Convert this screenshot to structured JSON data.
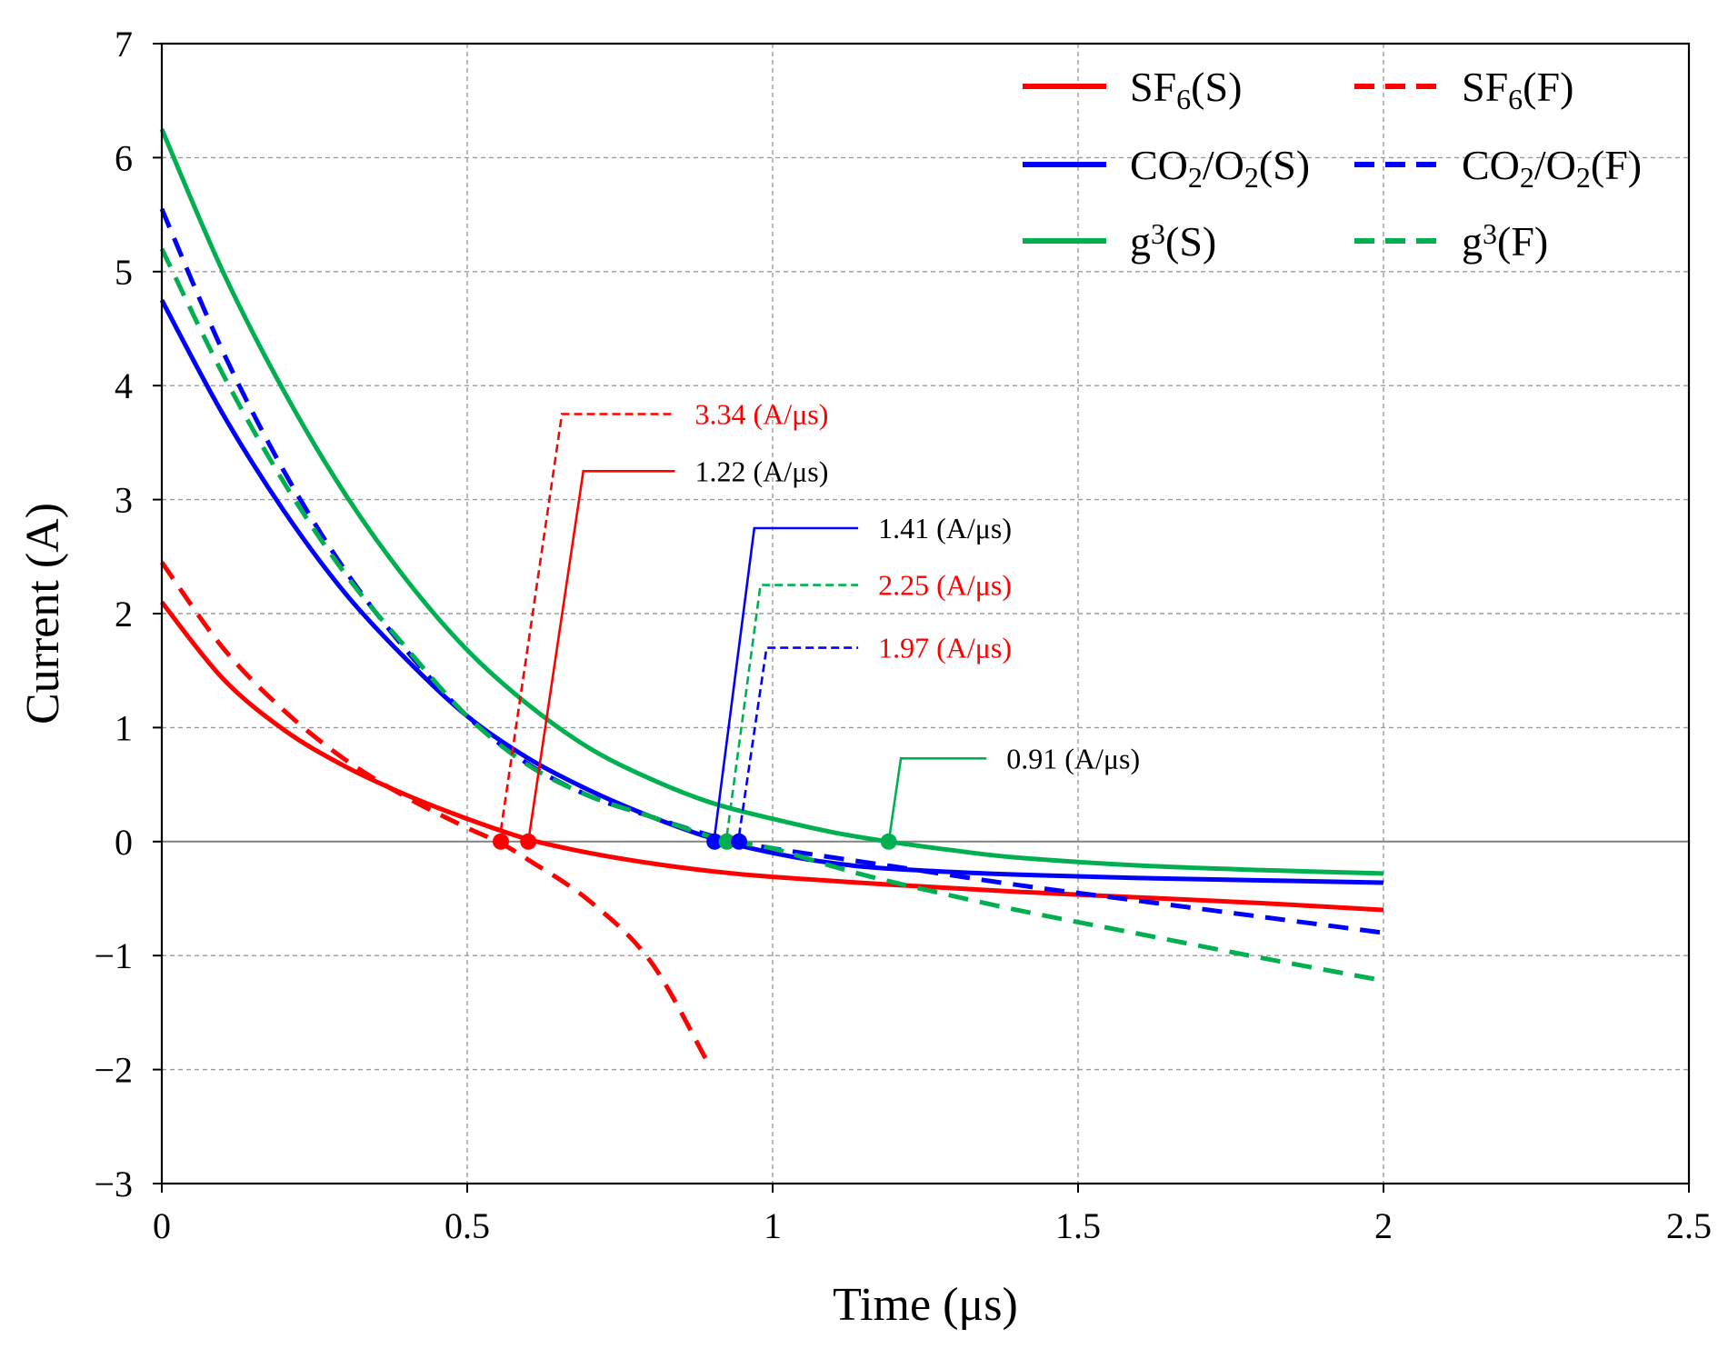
{
  "chart_data": {
    "type": "line",
    "title": "",
    "xlabel": "Time (μs)",
    "ylabel": "Current (A)",
    "xlim": [
      0,
      2.5
    ],
    "ylim": [
      -3,
      7
    ],
    "xticks": [
      0,
      0.5,
      1,
      1.5,
      2,
      2.5
    ],
    "xtick_labels": [
      "0",
      "0.5",
      "1",
      "1.5",
      "2",
      "2.5"
    ],
    "yticks": [
      -3,
      -2,
      -1,
      0,
      1,
      2,
      3,
      4,
      5,
      6,
      7
    ],
    "ytick_labels": [
      "−3",
      "−2",
      "−1",
      "0",
      "1",
      "2",
      "3",
      "4",
      "5",
      "6",
      "7"
    ],
    "grid": true,
    "legend_position": "top-right",
    "series": [
      {
        "name": "SF6(S)",
        "legend_main": "SF",
        "legend_sub": "6",
        "legend_rest": "(S)",
        "color": "#ff0000",
        "dash": "solid",
        "x": [
          0,
          0.1,
          0.2,
          0.3,
          0.4,
          0.5,
          0.6,
          0.7,
          0.8,
          0.9,
          1.0,
          1.2,
          1.4,
          1.6,
          1.8,
          2.0
        ],
        "y": [
          2.1,
          1.43,
          0.98,
          0.66,
          0.41,
          0.2,
          0.02,
          -0.1,
          -0.19,
          -0.26,
          -0.31,
          -0.38,
          -0.44,
          -0.49,
          -0.54,
          -0.6
        ]
      },
      {
        "name": "SF6(F)",
        "legend_main": "SF",
        "legend_sub": "6",
        "legend_rest": "(F)",
        "color": "#ff0000",
        "dash": "dashed",
        "x": [
          0,
          0.1,
          0.2,
          0.3,
          0.4,
          0.5,
          0.55,
          0.6,
          0.7,
          0.8,
          0.89
        ],
        "y": [
          2.45,
          1.7,
          1.15,
          0.72,
          0.39,
          0.12,
          0.0,
          -0.16,
          -0.52,
          -1.05,
          -1.9
        ]
      },
      {
        "name": "CO2/O2(S)",
        "legend_main": "CO",
        "legend_sub": "2",
        "legend_rest": "/O",
        "legend_sub2": "2",
        "legend_rest2": "(S)",
        "color": "#0000ff",
        "dash": "solid",
        "x": [
          0,
          0.1,
          0.2,
          0.3,
          0.4,
          0.5,
          0.6,
          0.7,
          0.8,
          0.9,
          1.0,
          1.1,
          1.2,
          1.4,
          1.6,
          1.8,
          2.0
        ],
        "y": [
          4.75,
          3.75,
          2.9,
          2.18,
          1.6,
          1.1,
          0.73,
          0.45,
          0.22,
          0.03,
          -0.1,
          -0.19,
          -0.24,
          -0.29,
          -0.32,
          -0.34,
          -0.36
        ]
      },
      {
        "name": "CO2/O2(F)",
        "legend_main": "CO",
        "legend_sub": "2",
        "legend_rest": "/O",
        "legend_sub2": "2",
        "legend_rest2": "(F)",
        "color": "#0000ff",
        "dash": "dashed",
        "x": [
          0,
          0.1,
          0.2,
          0.3,
          0.4,
          0.5,
          0.6,
          0.7,
          0.8,
          0.9,
          0.95,
          1.0,
          1.2,
          1.4,
          1.6,
          1.8,
          2.0
        ],
        "y": [
          5.55,
          4.3,
          3.25,
          2.38,
          1.68,
          1.1,
          0.68,
          0.4,
          0.22,
          0.05,
          -0.01,
          -0.06,
          -0.22,
          -0.38,
          -0.52,
          -0.66,
          -0.8
        ]
      },
      {
        "name": "g3(S)",
        "legend_main": "g",
        "legend_sup": "3",
        "legend_rest": "(S)",
        "color": "#00b050",
        "dash": "solid",
        "x": [
          0,
          0.1,
          0.2,
          0.3,
          0.4,
          0.5,
          0.6,
          0.7,
          0.8,
          0.9,
          1.0,
          1.1,
          1.19,
          1.3,
          1.4,
          1.6,
          1.8,
          2.0
        ],
        "y": [
          6.25,
          5.0,
          3.95,
          3.05,
          2.3,
          1.68,
          1.2,
          0.82,
          0.55,
          0.34,
          0.2,
          0.08,
          0.0,
          -0.08,
          -0.14,
          -0.21,
          -0.25,
          -0.28
        ]
      },
      {
        "name": "g3(F)",
        "legend_main": "g",
        "legend_sup": "3",
        "legend_rest": "(F)",
        "color": "#00b050",
        "dash": "dashed",
        "x": [
          0,
          0.1,
          0.2,
          0.3,
          0.4,
          0.5,
          0.6,
          0.7,
          0.8,
          0.9,
          0.93,
          1.0,
          1.1,
          1.2,
          1.4,
          1.6,
          1.8,
          2.0
        ],
        "y": [
          5.2,
          4.1,
          3.15,
          2.35,
          1.7,
          1.1,
          0.67,
          0.4,
          0.22,
          0.04,
          0.0,
          -0.06,
          -0.22,
          -0.36,
          -0.6,
          -0.81,
          -1.02,
          -1.22
        ]
      }
    ],
    "zero_crossings": [
      {
        "series": "SF6(F)",
        "x": 0.555,
        "y": 0,
        "color": "#ff0000"
      },
      {
        "series": "SF6(S)",
        "x": 0.6,
        "y": 0,
        "color": "#ff0000"
      },
      {
        "series": "CO2/O2(S)",
        "x": 0.905,
        "y": 0,
        "color": "#0000ff"
      },
      {
        "series": "g3(F)",
        "x": 0.925,
        "y": 0,
        "color": "#00b050"
      },
      {
        "series": "CO2/O2(F)",
        "x": 0.945,
        "y": 0,
        "color": "#0000ff"
      },
      {
        "series": "g3(S)",
        "x": 1.19,
        "y": 0,
        "color": "#00b050"
      }
    ],
    "annotations": [
      {
        "series": "SF6(F)",
        "value": 3.34,
        "label": "3.34 (A/μs)",
        "text_color": "#ff0000",
        "line_color": "#ff0000",
        "dash": "dashed",
        "from": [
          0.555,
          0.1
        ],
        "elbow": [
          0.655,
          3.75
        ],
        "end": [
          0.84,
          3.75
        ]
      },
      {
        "series": "SF6(S)",
        "value": 1.22,
        "label": "1.22 (A/μs)",
        "text_color": "#000000",
        "line_color": "#ff0000",
        "dash": "solid",
        "from": [
          0.6,
          0.0
        ],
        "elbow": [
          0.69,
          3.25
        ],
        "end": [
          0.84,
          3.25
        ]
      },
      {
        "series": "CO2/O2(S)",
        "value": 1.41,
        "label": "1.41 (A/μs)",
        "text_color": "#000000",
        "line_color": "#0000ff",
        "dash": "solid",
        "from": [
          0.905,
          0.05
        ],
        "elbow": [
          0.97,
          2.75
        ],
        "end": [
          1.14,
          2.75
        ]
      },
      {
        "series": "g3(F)",
        "value": 2.25,
        "label": "2.25 (A/μs)",
        "text_color": "#ff0000",
        "line_color": "#00b050",
        "dash": "dashed",
        "from": [
          0.925,
          0.05
        ],
        "elbow": [
          0.98,
          2.25
        ],
        "end": [
          1.14,
          2.25
        ]
      },
      {
        "series": "CO2/O2(F)",
        "value": 1.97,
        "label": "1.97 (A/μs)",
        "text_color": "#ff0000",
        "line_color": "#0000ff",
        "dash": "dashed",
        "from": [
          0.945,
          0.05
        ],
        "elbow": [
          0.99,
          1.7
        ],
        "end": [
          1.14,
          1.7
        ]
      },
      {
        "series": "g3(S)",
        "value": 0.91,
        "label": "0.91 (A/μs)",
        "text_color": "#000000",
        "line_color": "#00b050",
        "dash": "solid",
        "from": [
          1.19,
          0.0
        ],
        "elbow": [
          1.21,
          0.73
        ],
        "end": [
          1.35,
          0.73
        ]
      }
    ]
  }
}
